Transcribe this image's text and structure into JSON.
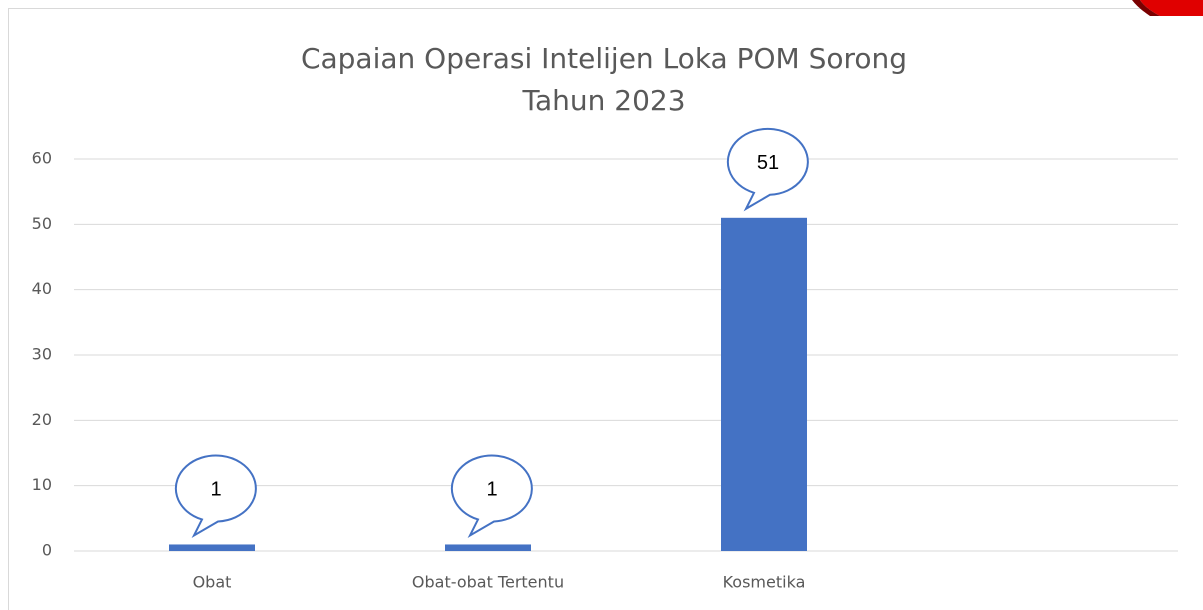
{
  "chart_data": {
    "type": "bar",
    "title": [
      "Capaian Operasi Intelijen Loka POM Sorong",
      "Tahun 2023"
    ],
    "categories": [
      "Obat",
      "Obat-obat Tertentu",
      "Kosmetika",
      null
    ],
    "values": [
      1,
      1,
      51,
      null
    ],
    "color": "#4472c4",
    "ylim": [
      0,
      60
    ],
    "yticks": [
      0,
      10,
      20,
      30,
      40,
      50,
      60
    ],
    "grid": true
  }
}
